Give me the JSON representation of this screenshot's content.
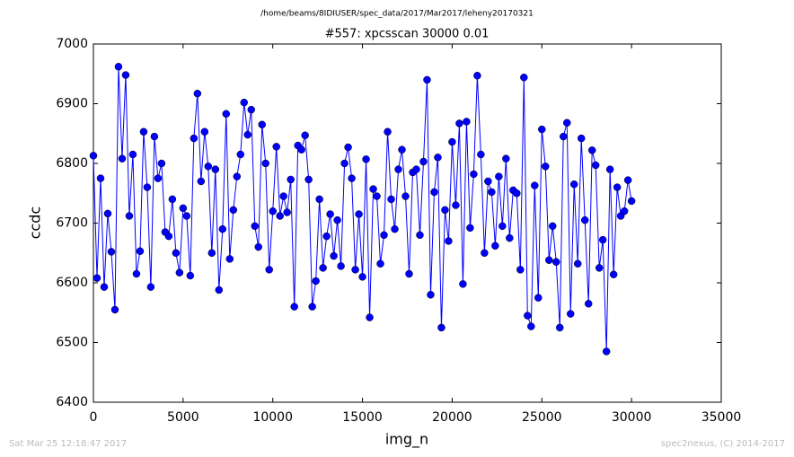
{
  "chart_data": {
    "type": "line",
    "suptitle": "/home/beams/8IDIUSER/spec_data/2017/Mar2017/leheny20170321",
    "title": "#557: xpcsscan 30000 0.01",
    "xlabel": "img_n",
    "ylabel": "ccdc",
    "color": "#0000ff",
    "marker": "circle",
    "xlim": [
      0,
      35000
    ],
    "xticks": [
      0,
      5000,
      10000,
      15000,
      20000,
      25000,
      30000,
      35000
    ],
    "ylim": [
      6400,
      7000
    ],
    "yticks": [
      6400,
      6500,
      6600,
      6700,
      6800,
      6900,
      7000
    ],
    "x": [
      0,
      200,
      400,
      600,
      800,
      1000,
      1200,
      1400,
      1600,
      1800,
      2000,
      2200,
      2400,
      2600,
      2800,
      3000,
      3200,
      3400,
      3600,
      3800,
      4000,
      4200,
      4400,
      4600,
      4800,
      5000,
      5200,
      5400,
      5600,
      5800,
      6000,
      6200,
      6400,
      6600,
      6800,
      7000,
      7200,
      7400,
      7600,
      7800,
      8000,
      8200,
      8400,
      8600,
      8800,
      9000,
      9200,
      9400,
      9600,
      9800,
      10000,
      10200,
      10400,
      10600,
      10800,
      11000,
      11200,
      11400,
      11600,
      11800,
      12000,
      12200,
      12400,
      12600,
      12800,
      13000,
      13200,
      13400,
      13600,
      13800,
      14000,
      14200,
      14400,
      14600,
      14800,
      15000,
      15200,
      15400,
      15600,
      15800,
      16000,
      16200,
      16400,
      16600,
      16800,
      17000,
      17200,
      17400,
      17600,
      17800,
      18000,
      18200,
      18400,
      18600,
      18800,
      19000,
      19200,
      19400,
      19600,
      19800,
      20000,
      20200,
      20400,
      20600,
      20800,
      21000,
      21200,
      21400,
      21600,
      21800,
      22000,
      22200,
      22400,
      22600,
      22800,
      23000,
      23200,
      23400,
      23600,
      23800,
      24000,
      24200,
      24400,
      24600,
      24800,
      25000,
      25200,
      25400,
      25600,
      25800,
      26000,
      26200,
      26400,
      26600,
      26800,
      27000,
      27200,
      27400,
      27600,
      27800,
      28000,
      28200,
      28400,
      28600,
      28800,
      29000,
      29200,
      29400,
      29600,
      29800,
      30000
    ],
    "values": [
      6813,
      6608,
      6775,
      6593,
      6716,
      6652,
      6555,
      6962,
      6808,
      6948,
      6712,
      6815,
      6615,
      6653,
      6853,
      6760,
      6593,
      6845,
      6775,
      6800,
      6685,
      6678,
      6740,
      6650,
      6617,
      6725,
      6712,
      6612,
      6842,
      6917,
      6770,
      6853,
      6795,
      6650,
      6790,
      6588,
      6690,
      6883,
      6640,
      6722,
      6778,
      6815,
      6902,
      6848,
      6890,
      6695,
      6660,
      6865,
      6800,
      6622,
      6720,
      6828,
      6712,
      6745,
      6718,
      6773,
      6560,
      6830,
      6823,
      6847,
      6773,
      6560,
      6603,
      6740,
      6625,
      6678,
      6715,
      6645,
      6705,
      6628,
      6800,
      6827,
      6775,
      6622,
      6715,
      6610,
      6807,
      6542,
      6757,
      6745,
      6632,
      6680,
      6853,
      6740,
      6690,
      6790,
      6823,
      6745,
      6615,
      6785,
      6790,
      6680,
      6803,
      6940,
      6580,
      6752,
      6810,
      6525,
      6722,
      6670,
      6836,
      6730,
      6867,
      6598,
      6870,
      6692,
      6782,
      6947,
      6815,
      6650,
      6770,
      6752,
      6662,
      6778,
      6695,
      6808,
      6675,
      6755,
      6750,
      6622,
      6944,
      6545,
      6527,
      6763,
      6575,
      6857,
      6795,
      6638,
      6695,
      6635,
      6525,
      6845,
      6868,
      6548,
      6765,
      6632,
      6842,
      6705,
      6565,
      6822,
      6797,
      6625,
      6672,
      6485,
      6790,
      6614,
      6760,
      6712,
      6720,
      6772,
      6737
    ]
  },
  "footer": {
    "left": "Sat Mar 25 12:18:47 2017",
    "right": "spec2nexus, (C) 2014-2017"
  }
}
